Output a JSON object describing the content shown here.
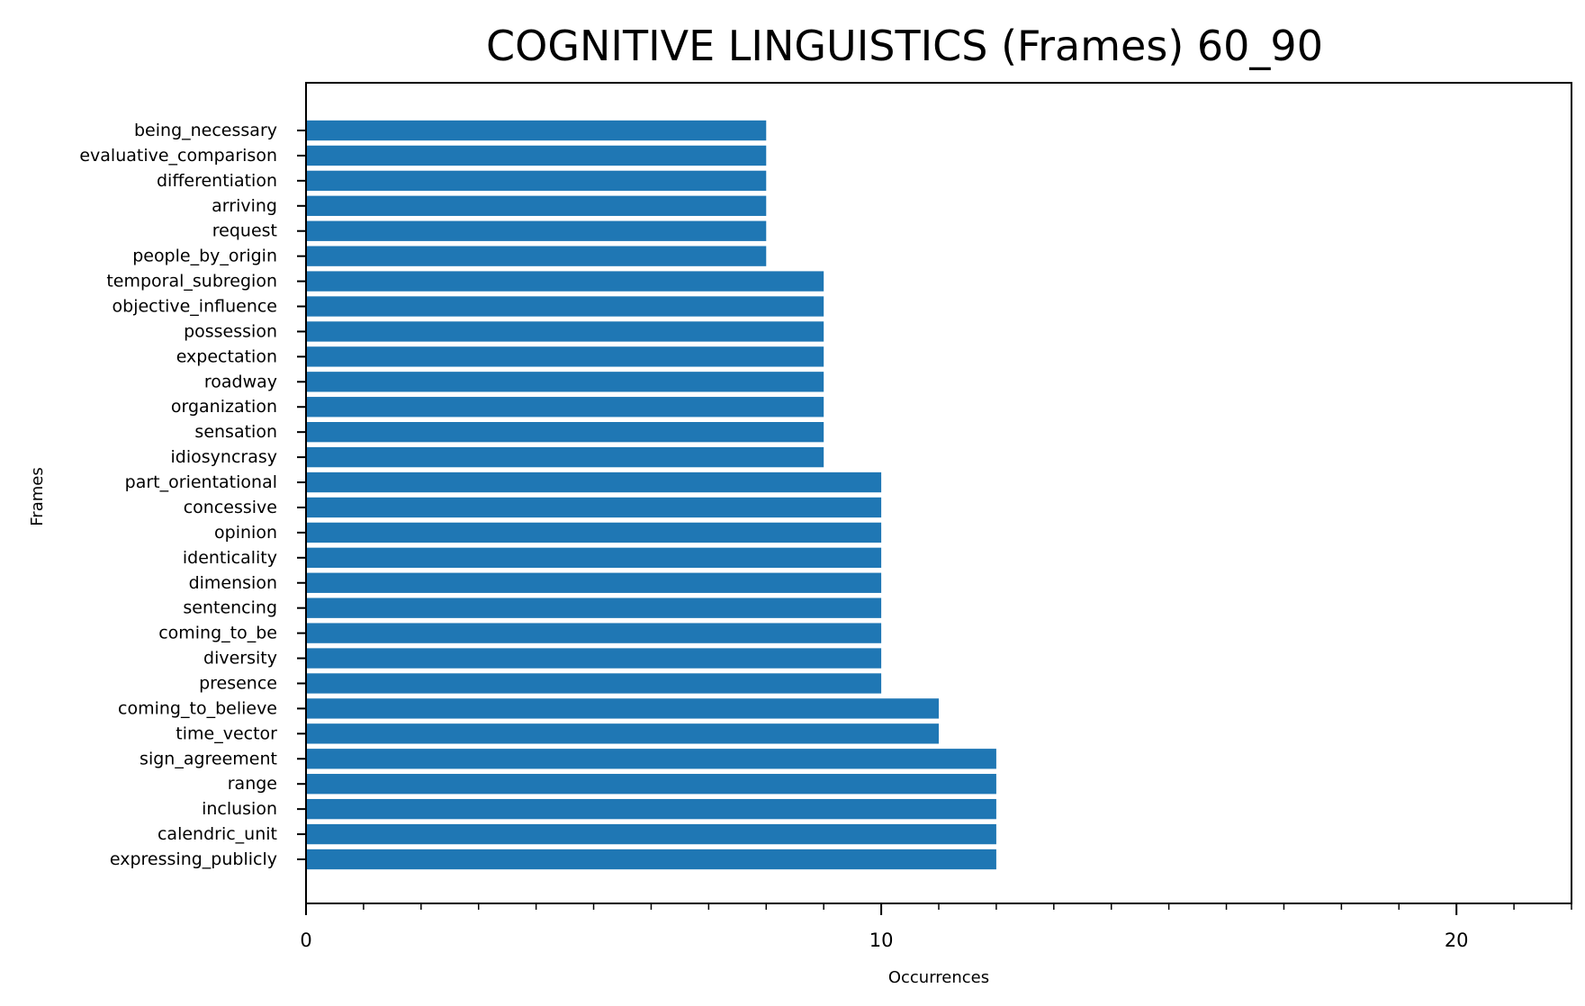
{
  "chart_data": {
    "type": "bar",
    "orientation": "horizontal",
    "title": "COGNITIVE LINGUISTICS (Frames) 60_90",
    "xlabel": "Occurrences",
    "ylabel": "Frames",
    "xlim": [
      0,
      22
    ],
    "xticks": [
      0,
      10,
      20
    ],
    "x_minor_tick_step": 1,
    "grid": false,
    "bar_color": "#1f77b4",
    "categories": [
      "being_necessary",
      "evaluative_comparison",
      "differentiation",
      "arriving",
      "request",
      "people_by_origin",
      "temporal_subregion",
      "objective_influence",
      "possession",
      "expectation",
      "roadway",
      "organization",
      "sensation",
      "idiosyncrasy",
      "part_orientational",
      "concessive",
      "opinion",
      "identicality",
      "dimension",
      "sentencing",
      "coming_to_be",
      "diversity",
      "presence",
      "coming_to_believe",
      "time_vector",
      "sign_agreement",
      "range",
      "inclusion",
      "calendric_unit",
      "expressing_publicly"
    ],
    "values": [
      8,
      8,
      8,
      8,
      8,
      8,
      9,
      9,
      9,
      9,
      9,
      9,
      9,
      9,
      10,
      10,
      10,
      10,
      10,
      10,
      10,
      10,
      10,
      11,
      11,
      12,
      12,
      12,
      12,
      12
    ]
  }
}
